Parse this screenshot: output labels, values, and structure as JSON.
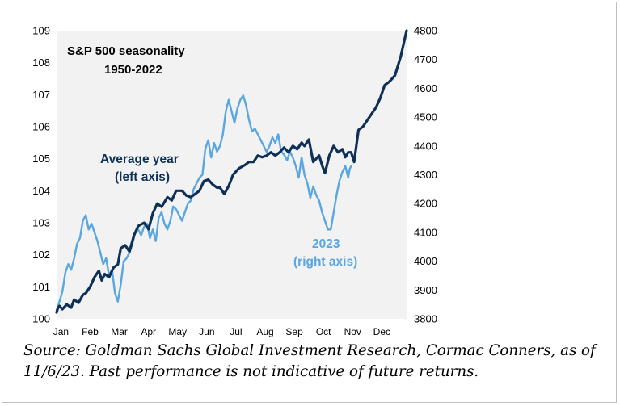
{
  "chart_data": {
    "type": "line",
    "title": "S&P 500 seasonality",
    "subtitle": "1950-2022",
    "months": [
      "Jan",
      "Feb",
      "Mar",
      "Apr",
      "May",
      "Jun",
      "Jul",
      "Aug",
      "Sep",
      "Oct",
      "Nov",
      "Dec"
    ],
    "left_axis": {
      "ylim": [
        100,
        109
      ],
      "ticks": [
        "100",
        "101",
        "102",
        "103",
        "104",
        "105",
        "106",
        "107",
        "108",
        "109"
      ]
    },
    "right_axis": {
      "ylim": [
        3800,
        4800
      ],
      "ticks": [
        "3800",
        "3900",
        "4000",
        "4100",
        "4200",
        "4300",
        "4400",
        "4500",
        "4600",
        "4700",
        "4800"
      ]
    },
    "grid": false,
    "series": [
      {
        "name": "Average year",
        "axis_label": "(left axis)",
        "axis": "left",
        "color": "#0e3057",
        "x": [
          0,
          0.05,
          0.1,
          0.2,
          0.35,
          0.5,
          0.6,
          0.75,
          0.9,
          1.0,
          1.15,
          1.3,
          1.45,
          1.55,
          1.65,
          1.8,
          1.95,
          2.1,
          2.2,
          2.35,
          2.5,
          2.65,
          2.8,
          3.0,
          3.15,
          3.3,
          3.45,
          3.6,
          3.8,
          3.95,
          4.1,
          4.3,
          4.45,
          4.6,
          4.75,
          4.9,
          5.05,
          5.2,
          5.35,
          5.5,
          5.6,
          5.75,
          5.9,
          6.05,
          6.25,
          6.45,
          6.6,
          6.75,
          6.9,
          7.05,
          7.2,
          7.35,
          7.5,
          7.65,
          7.8,
          7.95,
          8.1,
          8.25,
          8.4,
          8.5,
          8.65,
          8.8,
          8.9,
          9.0,
          9.1,
          9.2,
          9.35,
          9.5,
          9.65,
          9.8,
          9.9,
          10.0,
          10.1,
          10.2,
          10.35,
          10.5,
          10.65,
          10.8,
          10.95,
          11.1,
          11.25,
          11.4,
          11.5,
          11.6,
          11.7,
          11.8,
          11.9,
          12.0
        ],
        "values": [
          100.2,
          100.35,
          100.4,
          100.3,
          100.45,
          100.35,
          100.6,
          100.5,
          100.75,
          100.8,
          101.0,
          101.3,
          101.5,
          101.2,
          101.4,
          101.3,
          101.6,
          101.7,
          102.2,
          102.3,
          102.1,
          102.6,
          102.9,
          103.0,
          102.8,
          103.3,
          103.6,
          103.5,
          103.8,
          103.7,
          104.0,
          104.0,
          103.85,
          103.8,
          103.9,
          104.0,
          104.3,
          104.35,
          104.2,
          104.1,
          104.1,
          103.9,
          104.15,
          104.5,
          104.7,
          104.8,
          104.9,
          104.9,
          105.1,
          105.05,
          105.1,
          105.2,
          105.1,
          105.2,
          105.35,
          105.2,
          105.4,
          105.3,
          105.5,
          105.4,
          105.6,
          104.9,
          105.0,
          105.1,
          104.8,
          104.55,
          105.1,
          105.4,
          105.2,
          105.3,
          105.05,
          105.2,
          105.2,
          104.9,
          105.9,
          106.0,
          106.2,
          106.4,
          106.6,
          106.9,
          107.3,
          107.4,
          107.5,
          107.6,
          107.9,
          108.2,
          108.6,
          109.0
        ]
      },
      {
        "name": "2023",
        "axis_label": "(right axis)",
        "axis": "right",
        "color": "#5aa6de",
        "x": [
          0,
          0.1,
          0.2,
          0.3,
          0.4,
          0.5,
          0.6,
          0.7,
          0.8,
          0.9,
          1.0,
          1.1,
          1.2,
          1.3,
          1.4,
          1.5,
          1.6,
          1.7,
          1.8,
          1.9,
          2.0,
          2.1,
          2.2,
          2.3,
          2.4,
          2.5,
          2.6,
          2.7,
          2.8,
          2.9,
          3.0,
          3.1,
          3.2,
          3.3,
          3.4,
          3.5,
          3.6,
          3.7,
          3.8,
          3.9,
          4.0,
          4.1,
          4.2,
          4.3,
          4.4,
          4.5,
          4.6,
          4.7,
          4.8,
          4.9,
          5.0,
          5.1,
          5.2,
          5.3,
          5.4,
          5.5,
          5.6,
          5.7,
          5.8,
          5.9,
          6.0,
          6.1,
          6.2,
          6.3,
          6.4,
          6.5,
          6.6,
          6.7,
          6.8,
          6.9,
          7.0,
          7.1,
          7.2,
          7.3,
          7.4,
          7.5,
          7.6,
          7.7,
          7.8,
          7.9,
          8.0,
          8.1,
          8.2,
          8.3,
          8.4,
          8.5,
          8.6,
          8.7,
          8.8,
          8.9,
          9.0,
          9.1,
          9.2,
          9.3,
          9.4,
          9.5,
          9.6,
          9.7,
          9.8,
          9.9,
          10.0,
          10.05,
          10.1
        ],
        "values": [
          3830,
          3860,
          3895,
          3960,
          3990,
          3970,
          4010,
          4060,
          4080,
          4140,
          4160,
          4110,
          4130,
          4100,
          4070,
          4030,
          3990,
          4010,
          3950,
          3970,
          3890,
          3860,
          3920,
          4000,
          4010,
          4030,
          4060,
          4100,
          4110,
          4090,
          4120,
          4130,
          4080,
          4110,
          4070,
          4150,
          4170,
          4130,
          4110,
          4140,
          4190,
          4180,
          4160,
          4140,
          4170,
          4200,
          4210,
          4250,
          4270,
          4290,
          4300,
          4390,
          4420,
          4360,
          4410,
          4380,
          4400,
          4440,
          4520,
          4560,
          4520,
          4480,
          4530,
          4560,
          4575,
          4540,
          4490,
          4450,
          4460,
          4440,
          4420,
          4400,
          4380,
          4400,
          4430,
          4410,
          4440,
          4380,
          4370,
          4350,
          4380,
          4360,
          4330,
          4290,
          4360,
          4300,
          4270,
          4220,
          4260,
          4230,
          4210,
          4170,
          4140,
          4110,
          4110,
          4170,
          4230,
          4280,
          4310,
          4330,
          4290,
          4320,
          4330
        ]
      }
    ]
  },
  "caption": {
    "line1": "Source: Goldman Sachs Global Investment Research, Cormac Conners,  as of",
    "line2": "11/6/23. Past performance is not indicative of future returns."
  }
}
